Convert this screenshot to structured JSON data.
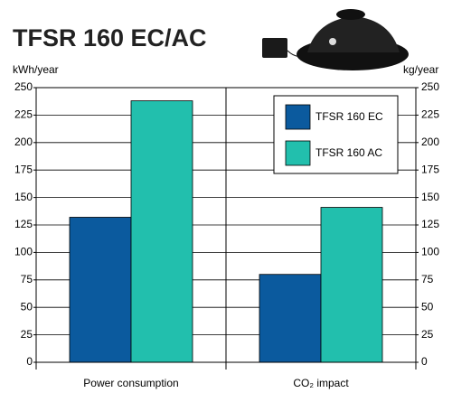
{
  "chart_data": {
    "type": "bar",
    "title": "TFSR 160 EC/AC",
    "ylabel": "kWh/year",
    "y2label": "kg/year",
    "categories": [
      "Power consumption",
      "CO₂ impact"
    ],
    "series": [
      {
        "name": "TFSR 160 EC",
        "color": "#0b5a9e",
        "values": [
          132,
          80
        ]
      },
      {
        "name": "TFSR 160 AC",
        "color": "#22bfad",
        "values": [
          238,
          141
        ]
      }
    ],
    "ylim": [
      0,
      250
    ],
    "yticks": [
      0,
      25,
      50,
      75,
      100,
      125,
      150,
      175,
      200,
      225,
      250
    ],
    "y2lim": [
      0,
      250
    ],
    "y2ticks": [
      0,
      25,
      50,
      75,
      100,
      125,
      150,
      175,
      200,
      225,
      250
    ],
    "grid": true
  }
}
